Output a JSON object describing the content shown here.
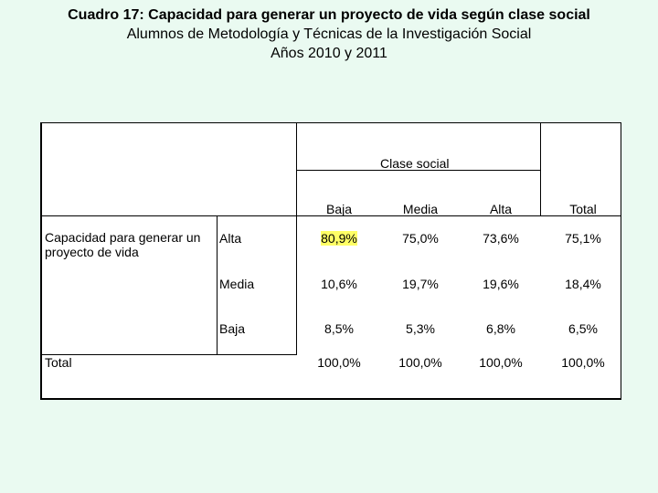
{
  "titles": {
    "line1": "Cuadro 17:  Capacidad para generar un proyecto de vida según clase social",
    "line2": "Alumnos de Metodología y Técnicas de la Investigación Social",
    "line3": "Años 2010 y 2011"
  },
  "table": {
    "group_header": "Clase social",
    "columns": [
      "Baja",
      "Media",
      "Alta",
      "Total"
    ],
    "row_variable": "Capacidad para generar un proyecto de vida",
    "rows": [
      {
        "label": "Alta",
        "values": [
          "80,9%",
          "75,0%",
          "73,6%",
          "75,1%"
        ]
      },
      {
        "label": "Media",
        "values": [
          "10,6%",
          "19,7%",
          "19,6%",
          "18,4%"
        ]
      },
      {
        "label": "Baja",
        "values": [
          "8,5%",
          "5,3%",
          "6,8%",
          "6,5%"
        ]
      }
    ],
    "total": {
      "label": "Total",
      "values": [
        "100,0%",
        "100,0%",
        "100,0%",
        "100,0%"
      ]
    },
    "highlight_color": "#ffff66"
  }
}
